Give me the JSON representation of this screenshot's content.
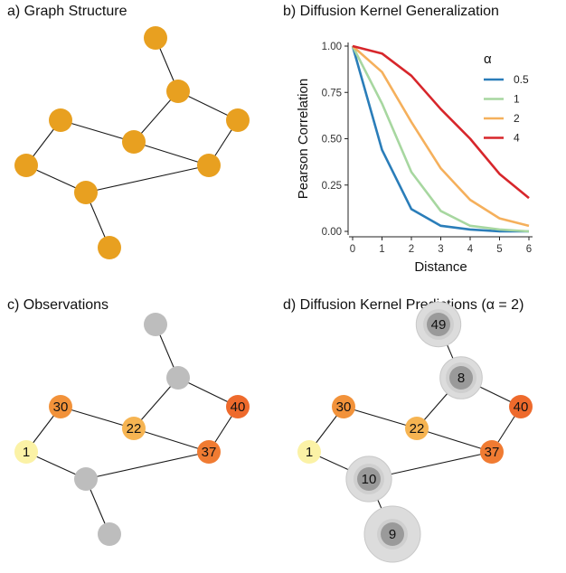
{
  "panels": {
    "a": {
      "title": "a) Graph Structure"
    },
    "b": {
      "title": "b) Diffusion Kernel Generalization"
    },
    "c": {
      "title": "c) Observations"
    },
    "d": {
      "title": "d) Diffusion Kernel Predictions (α = 2)"
    }
  },
  "graph": {
    "edges": [
      [
        0,
        1
      ],
      [
        1,
        2
      ],
      [
        1,
        4
      ],
      [
        2,
        3
      ],
      [
        3,
        7
      ],
      [
        4,
        3
      ],
      [
        4,
        5
      ],
      [
        5,
        6
      ],
      [
        6,
        7
      ],
      [
        7,
        8
      ]
    ],
    "node_color": "#E8A020",
    "unobserved_color": "#BDBDBD",
    "observed": [
      {
        "node": 2,
        "value": "40",
        "color": "#EE6A2C"
      },
      {
        "node": 3,
        "value": "37",
        "color": "#F07B32"
      },
      {
        "node": 4,
        "value": "22",
        "color": "#F6B452"
      },
      {
        "node": 5,
        "value": "30",
        "color": "#F2923A"
      },
      {
        "node": 6,
        "value": "1",
        "color": "#FBF2A6"
      }
    ],
    "predicted": [
      {
        "node": 0,
        "value": "49",
        "uncertainty": 0.55
      },
      {
        "node": 1,
        "value": "8",
        "uncertainty": 0.45
      },
      {
        "node": 7,
        "value": "10",
        "uncertainty": 0.58
      },
      {
        "node": 8,
        "value": "9",
        "uncertainty": 1.0
      }
    ],
    "predicted_core_color": "#9A9A9A",
    "predicted_halo_color": "#DCDCDC"
  },
  "chart_data": {
    "type": "line",
    "title": "",
    "xlabel": "Distance",
    "ylabel": "Pearson Correlation",
    "xlim": [
      0,
      6
    ],
    "ylim": [
      0,
      1
    ],
    "xticks": [
      "0",
      "1",
      "2",
      "3",
      "4",
      "5",
      "6"
    ],
    "yticks": [
      "0.00",
      "0.25",
      "0.50",
      "0.75",
      "1.00"
    ],
    "grid": false,
    "legend_title": "α",
    "legend_position": "right",
    "x": [
      0,
      1,
      2,
      3,
      4,
      5,
      6
    ],
    "series": [
      {
        "name": "0.5",
        "color": "#2A7DB9",
        "values": [
          1.0,
          0.44,
          0.12,
          0.03,
          0.01,
          0.0,
          0.0
        ]
      },
      {
        "name": "1",
        "color": "#A7D7A0",
        "values": [
          1.0,
          0.69,
          0.32,
          0.11,
          0.03,
          0.01,
          0.0
        ]
      },
      {
        "name": "2",
        "color": "#F5B05C",
        "values": [
          1.0,
          0.86,
          0.59,
          0.34,
          0.17,
          0.07,
          0.03
        ]
      },
      {
        "name": "4",
        "color": "#D7262B",
        "values": [
          1.0,
          0.96,
          0.84,
          0.66,
          0.5,
          0.31,
          0.18
        ]
      }
    ]
  }
}
